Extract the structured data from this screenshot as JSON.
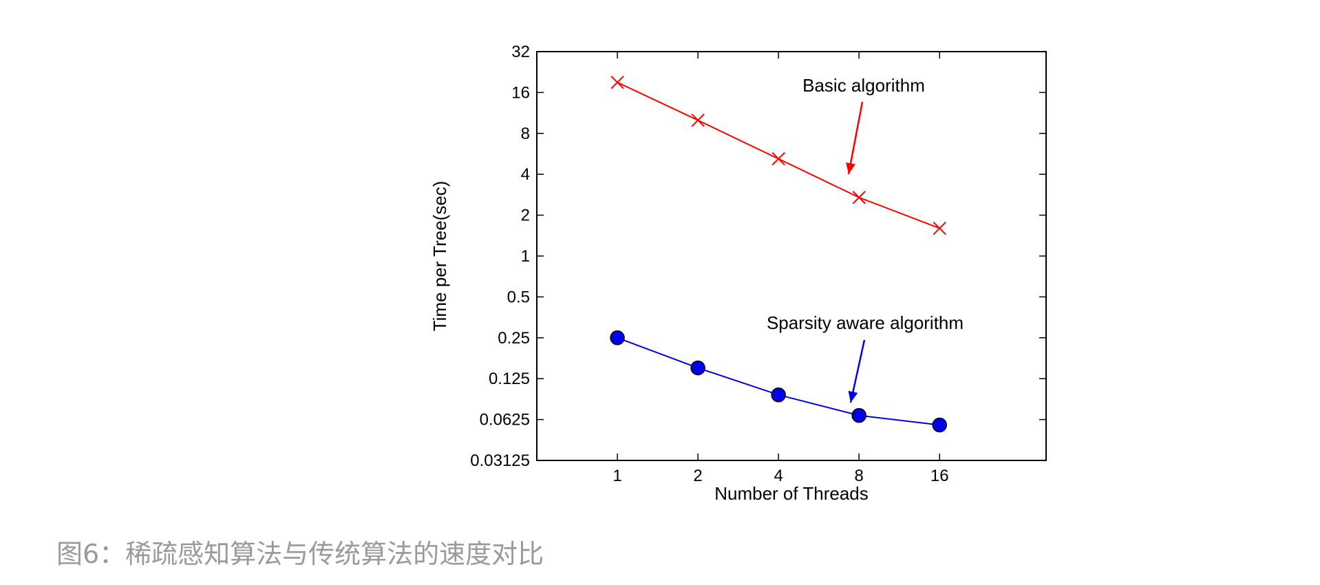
{
  "chart_data": {
    "type": "line",
    "xlabel": "Number of Threads",
    "ylabel": "Time per Tree(sec)",
    "x": [
      1,
      2,
      4,
      8,
      16
    ],
    "x_scale": "log2",
    "xlim": [
      0.5,
      40
    ],
    "y_scale": "log2",
    "ylim": [
      0.03125,
      32
    ],
    "x_ticks": [
      1,
      2,
      4,
      8,
      16
    ],
    "x_tick_labels": [
      "1",
      "2",
      "4",
      "8",
      "16"
    ],
    "y_ticks": [
      0.03125,
      0.0625,
      0.125,
      0.25,
      0.5,
      1,
      2,
      4,
      8,
      16,
      32
    ],
    "y_tick_labels": [
      "0.03125",
      "0.0625",
      "0.125",
      "0.25",
      "0.5",
      "1",
      "2",
      "4",
      "8",
      "16",
      "32"
    ],
    "grid": false,
    "series": [
      {
        "name": "Basic algorithm",
        "color": "#ff0000",
        "marker": "x",
        "values": [
          19,
          10,
          5.2,
          2.7,
          1.6
        ]
      },
      {
        "name": "Sparsity aware algorithm",
        "color": "#0000ee",
        "marker": "circle",
        "values": [
          0.25,
          0.15,
          0.095,
          0.067,
          0.057
        ]
      }
    ],
    "annotations": [
      {
        "text": "Basic algorithm",
        "series": 0
      },
      {
        "text": "Sparsity aware algorithm",
        "series": 1
      }
    ]
  },
  "caption": "图6：稀疏感知算法与传统算法的速度对比"
}
